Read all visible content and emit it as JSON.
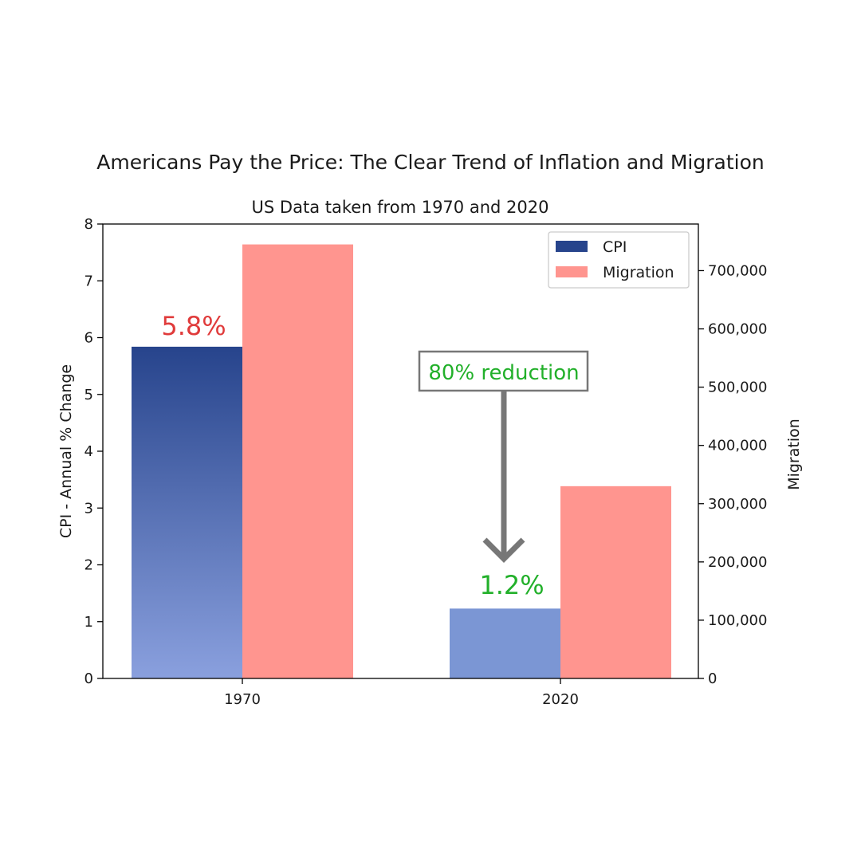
{
  "chart_data": {
    "type": "bar",
    "title": "Americans Pay the Price:  The Clear Trend of Inflation and Migration",
    "subtitle": "US Data taken from 1970 and 2020",
    "categories": [
      "1970",
      "2020"
    ],
    "series": [
      {
        "name": "CPI",
        "values": [
          5.84,
          1.23
        ],
        "axis": "left",
        "color": "#27448c",
        "gradient_bottom": "#8aa0de",
        "color_2020": "#7b96d4"
      },
      {
        "name": "Migration",
        "values": [
          745000,
          330000
        ],
        "axis": "right",
        "color": "#ff958f"
      }
    ],
    "ylabel": "CPI - Annual % Change",
    "ylim": [
      0,
      8
    ],
    "yticks": [
      "0",
      "1",
      "2",
      "3",
      "4",
      "5",
      "6",
      "7",
      "8"
    ],
    "y2label": "Migration",
    "y2lim": [
      0,
      780000
    ],
    "y2ticks": [
      "0",
      "100,000",
      "200,000",
      "300,000",
      "400,000",
      "500,000",
      "600,000",
      "700,000"
    ],
    "legend": {
      "placement": "top-right",
      "entries": [
        "CPI",
        "Migration"
      ]
    },
    "data_labels": [
      "5.8%",
      "1.2%"
    ],
    "annotation": {
      "text": "80% reduction",
      "arrow_color": "#777777"
    },
    "grid": false
  }
}
